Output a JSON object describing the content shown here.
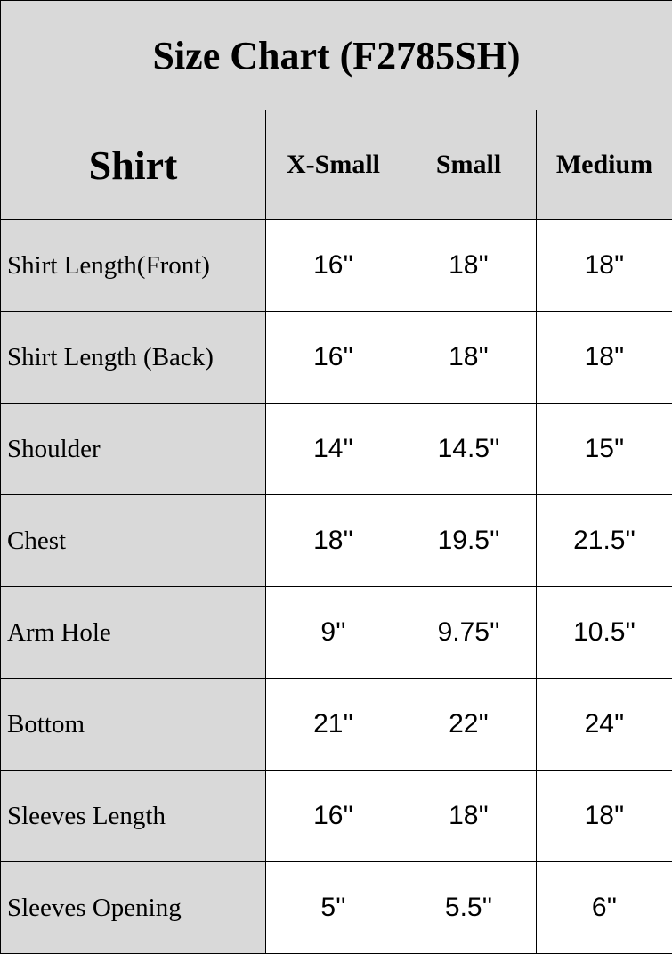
{
  "title": "Size Chart (F2785SH)",
  "header": {
    "category": "Shirt",
    "sizes": [
      "X-Small",
      "Small",
      "Medium"
    ]
  },
  "rows": [
    {
      "label": "Shirt Length(Front)",
      "values": [
        "16''",
        "18''",
        "18''"
      ]
    },
    {
      "label": "Shirt Length (Back)",
      "values": [
        "16''",
        "18''",
        "18''"
      ]
    },
    {
      "label": "Shoulder",
      "values": [
        "14''",
        "14.5''",
        "15''"
      ]
    },
    {
      "label": "Chest",
      "values": [
        "18''",
        "19.5''",
        "21.5''"
      ]
    },
    {
      "label": "Arm Hole",
      "values": [
        "9''",
        "9.75''",
        "10.5''"
      ]
    },
    {
      "label": "Bottom",
      "values": [
        "21''",
        "22''",
        "24''"
      ]
    },
    {
      "label": "Sleeves Length",
      "values": [
        "16''",
        "18''",
        "18''"
      ]
    },
    {
      "label": "Sleeves Opening",
      "values": [
        "5''",
        "5.5''",
        "6''"
      ]
    }
  ],
  "colors": {
    "header_bg": "#d9d9d9",
    "border": "#000000"
  }
}
